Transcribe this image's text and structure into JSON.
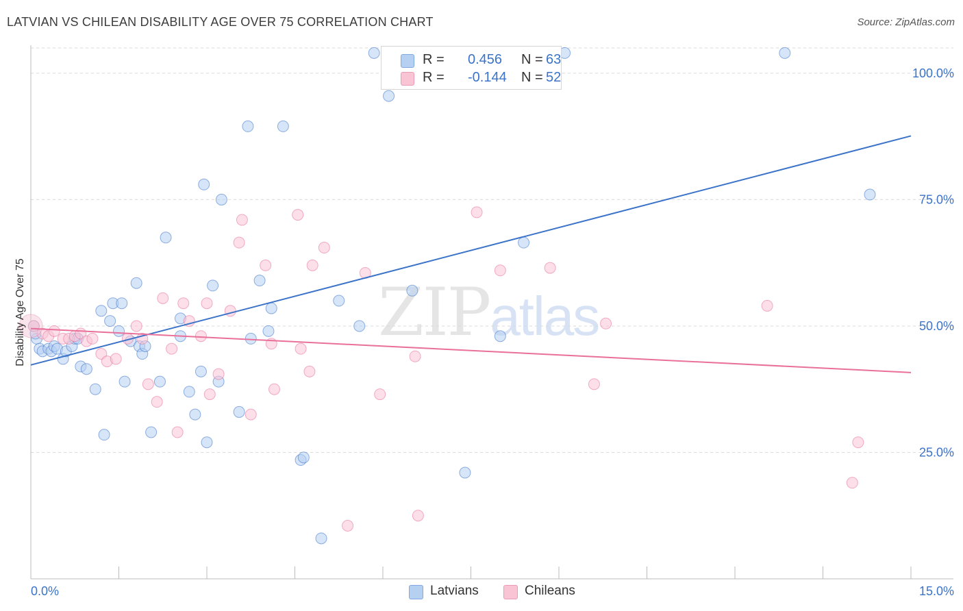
{
  "title": "LATVIAN VS CHILEAN DISABILITY AGE OVER 75 CORRELATION CHART",
  "source": "Source: ZipAtlas.com",
  "watermark": {
    "part1": "ZIP",
    "part2": "atlas"
  },
  "legend": {
    "rows": [
      {
        "r_label": "R =",
        "r_value": "0.456",
        "n_label": "N =",
        "n_value": "63",
        "color": "#b6d0f2"
      },
      {
        "r_label": "R =",
        "r_value": "-0.144",
        "n_label": "N =",
        "n_value": "52",
        "color": "#f9c5d5"
      }
    ]
  },
  "bottom_legend": [
    {
      "label": "Latvians",
      "color": "#b6d0f2"
    },
    {
      "label": "Chileans",
      "color": "#f9c5d5"
    }
  ],
  "chart_data": {
    "type": "scatter",
    "title": "LATVIAN VS CHILEAN DISABILITY AGE OVER 75 CORRELATION CHART",
    "xlabel": "",
    "ylabel": "Disability Age Over 75",
    "xlim": [
      0,
      15
    ],
    "ylim": [
      0,
      105
    ],
    "x_tick_labels": [
      "0.0%",
      "15.0%"
    ],
    "y_ticks": [
      25,
      50,
      75,
      100
    ],
    "y_tick_labels": [
      "25.0%",
      "50.0%",
      "75.0%",
      "100.0%"
    ],
    "grid": "horizontal dashed",
    "legend_position": "top-center",
    "series": [
      {
        "name": "Latvians",
        "color": "#3b73c9",
        "fill": "#b6d0f2",
        "regression": {
          "x": [
            0,
            15
          ],
          "y": [
            42.3,
            87.6
          ]
        },
        "points": [
          [
            0.05,
            50.0
          ],
          [
            0.1,
            47.5
          ],
          [
            0.15,
            45.5
          ],
          [
            0.2,
            45.0
          ],
          [
            0.3,
            45.5
          ],
          [
            0.35,
            45.0
          ],
          [
            0.4,
            46.0
          ],
          [
            0.45,
            45.5
          ],
          [
            0.55,
            43.5
          ],
          [
            0.6,
            45.0
          ],
          [
            0.7,
            46.0
          ],
          [
            0.75,
            47.5
          ],
          [
            0.8,
            47.5
          ],
          [
            0.85,
            42.0
          ],
          [
            0.95,
            41.5
          ],
          [
            1.1,
            37.5
          ],
          [
            1.2,
            53.0
          ],
          [
            1.25,
            28.5
          ],
          [
            1.35,
            51.0
          ],
          [
            1.4,
            54.5
          ],
          [
            1.5,
            49.0
          ],
          [
            1.55,
            54.5
          ],
          [
            1.6,
            39.0
          ],
          [
            1.7,
            47.0
          ],
          [
            1.8,
            58.5
          ],
          [
            1.85,
            46.0
          ],
          [
            1.9,
            44.5
          ],
          [
            1.95,
            46.0
          ],
          [
            2.05,
            29.0
          ],
          [
            2.2,
            39.0
          ],
          [
            2.3,
            67.5
          ],
          [
            2.55,
            48.0
          ],
          [
            2.55,
            51.5
          ],
          [
            2.7,
            37.0
          ],
          [
            2.8,
            32.5
          ],
          [
            2.9,
            41.0
          ],
          [
            2.95,
            78.0
          ],
          [
            3.0,
            27.0
          ],
          [
            3.1,
            58.0
          ],
          [
            3.2,
            39.0
          ],
          [
            3.25,
            75.0
          ],
          [
            3.55,
            33.0
          ],
          [
            3.7,
            89.5
          ],
          [
            3.75,
            47.5
          ],
          [
            3.9,
            59.0
          ],
          [
            4.05,
            49.0
          ],
          [
            4.1,
            53.5
          ],
          [
            4.3,
            89.5
          ],
          [
            4.6,
            23.5
          ],
          [
            4.65,
            24.0
          ],
          [
            4.95,
            8.0
          ],
          [
            5.25,
            55.0
          ],
          [
            5.6,
            50.0
          ],
          [
            5.85,
            104.0
          ],
          [
            6.1,
            95.5
          ],
          [
            6.5,
            57.0
          ],
          [
            7.4,
            21.0
          ],
          [
            8.0,
            48.0
          ],
          [
            8.4,
            66.5
          ],
          [
            9.1,
            104.0
          ],
          [
            12.85,
            104.0
          ],
          [
            14.3,
            76.0
          ],
          [
            0.08,
            48.5
          ]
        ]
      },
      {
        "name": "Chileans",
        "color": "#e8709a",
        "fill": "#f9c5d5",
        "regression": {
          "x": [
            0,
            15
          ],
          "y": [
            49.5,
            40.8
          ]
        },
        "points": [
          [
            0.05,
            50.0
          ],
          [
            0.2,
            48.5
          ],
          [
            0.3,
            48.0
          ],
          [
            0.4,
            49.0
          ],
          [
            0.55,
            47.5
          ],
          [
            0.65,
            47.5
          ],
          [
            0.75,
            48.0
          ],
          [
            0.85,
            48.5
          ],
          [
            0.95,
            47.0
          ],
          [
            1.05,
            47.5
          ],
          [
            1.2,
            44.5
          ],
          [
            1.3,
            43.0
          ],
          [
            1.45,
            43.5
          ],
          [
            1.65,
            47.5
          ],
          [
            1.8,
            50.0
          ],
          [
            1.9,
            47.5
          ],
          [
            2.0,
            38.5
          ],
          [
            2.15,
            35.0
          ],
          [
            2.25,
            55.5
          ],
          [
            2.4,
            45.5
          ],
          [
            2.5,
            29.0
          ],
          [
            2.6,
            54.5
          ],
          [
            2.7,
            51.0
          ],
          [
            2.9,
            48.0
          ],
          [
            3.0,
            54.5
          ],
          [
            3.05,
            36.5
          ],
          [
            3.2,
            40.5
          ],
          [
            3.4,
            53.0
          ],
          [
            3.55,
            66.5
          ],
          [
            3.6,
            71.0
          ],
          [
            3.75,
            32.5
          ],
          [
            4.0,
            62.0
          ],
          [
            4.1,
            46.5
          ],
          [
            4.15,
            37.5
          ],
          [
            4.55,
            72.0
          ],
          [
            4.6,
            45.5
          ],
          [
            4.75,
            41.0
          ],
          [
            4.8,
            62.0
          ],
          [
            5.0,
            65.5
          ],
          [
            5.4,
            10.5
          ],
          [
            5.7,
            60.5
          ],
          [
            5.95,
            36.5
          ],
          [
            6.55,
            44.0
          ],
          [
            6.6,
            12.5
          ],
          [
            7.6,
            72.5
          ],
          [
            8.0,
            61.0
          ],
          [
            8.85,
            61.5
          ],
          [
            9.6,
            38.5
          ],
          [
            9.8,
            50.5
          ],
          [
            12.55,
            54.0
          ],
          [
            14.1,
            27.0
          ],
          [
            14.0,
            19.0
          ]
        ]
      }
    ]
  }
}
